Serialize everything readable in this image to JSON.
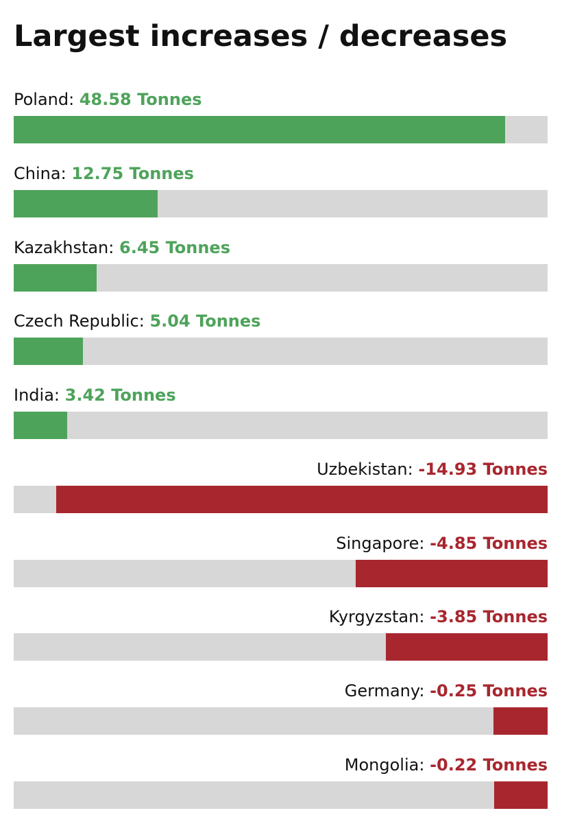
{
  "title": "Largest increases / decreases",
  "colors": {
    "increase": "#4ea35b",
    "decrease": "#a8272f",
    "track": "#d7d7d7",
    "text": "#111111"
  },
  "chart_data": {
    "type": "bar",
    "title": "Largest increases / decreases",
    "unit": "Tonnes",
    "categories": [
      "Poland",
      "China",
      "Kazakhstan",
      "Czech Republic",
      "India",
      "Uzbekistan",
      "Singapore",
      "Kyrgyzstan",
      "Germany",
      "Mongolia"
    ],
    "values": [
      48.58,
      12.75,
      6.45,
      5.04,
      3.42,
      -14.93,
      -4.85,
      -3.85,
      -0.25,
      -0.22
    ],
    "bars": [
      {
        "country": "Poland",
        "value_text": "48.58 Tonnes",
        "value": 48.58,
        "fill_fraction": 0.92
      },
      {
        "country": "China",
        "value_text": "12.75 Tonnes",
        "value": 12.75,
        "fill_fraction": 0.27
      },
      {
        "country": "Kazakhstan",
        "value_text": "6.45 Tonnes",
        "value": 6.45,
        "fill_fraction": 0.155
      },
      {
        "country": "Czech Republic",
        "value_text": "5.04 Tonnes",
        "value": 5.04,
        "fill_fraction": 0.13
      },
      {
        "country": "India",
        "value_text": "3.42 Tonnes",
        "value": 3.42,
        "fill_fraction": 0.1
      },
      {
        "country": "Uzbekistan",
        "value_text": "-14.93 Tonnes",
        "value": -14.93,
        "fill_fraction": 0.92
      },
      {
        "country": "Singapore",
        "value_text": "-4.85 Tonnes",
        "value": -4.85,
        "fill_fraction": 0.359
      },
      {
        "country": "Kyrgyzstan",
        "value_text": "-3.85 Tonnes",
        "value": -3.85,
        "fill_fraction": 0.303
      },
      {
        "country": "Germany",
        "value_text": "-0.25 Tonnes",
        "value": -0.25,
        "fill_fraction": 0.101
      },
      {
        "country": "Mongolia",
        "value_text": "-0.22 Tonnes",
        "value": -0.22,
        "fill_fraction": 0.1
      }
    ]
  }
}
